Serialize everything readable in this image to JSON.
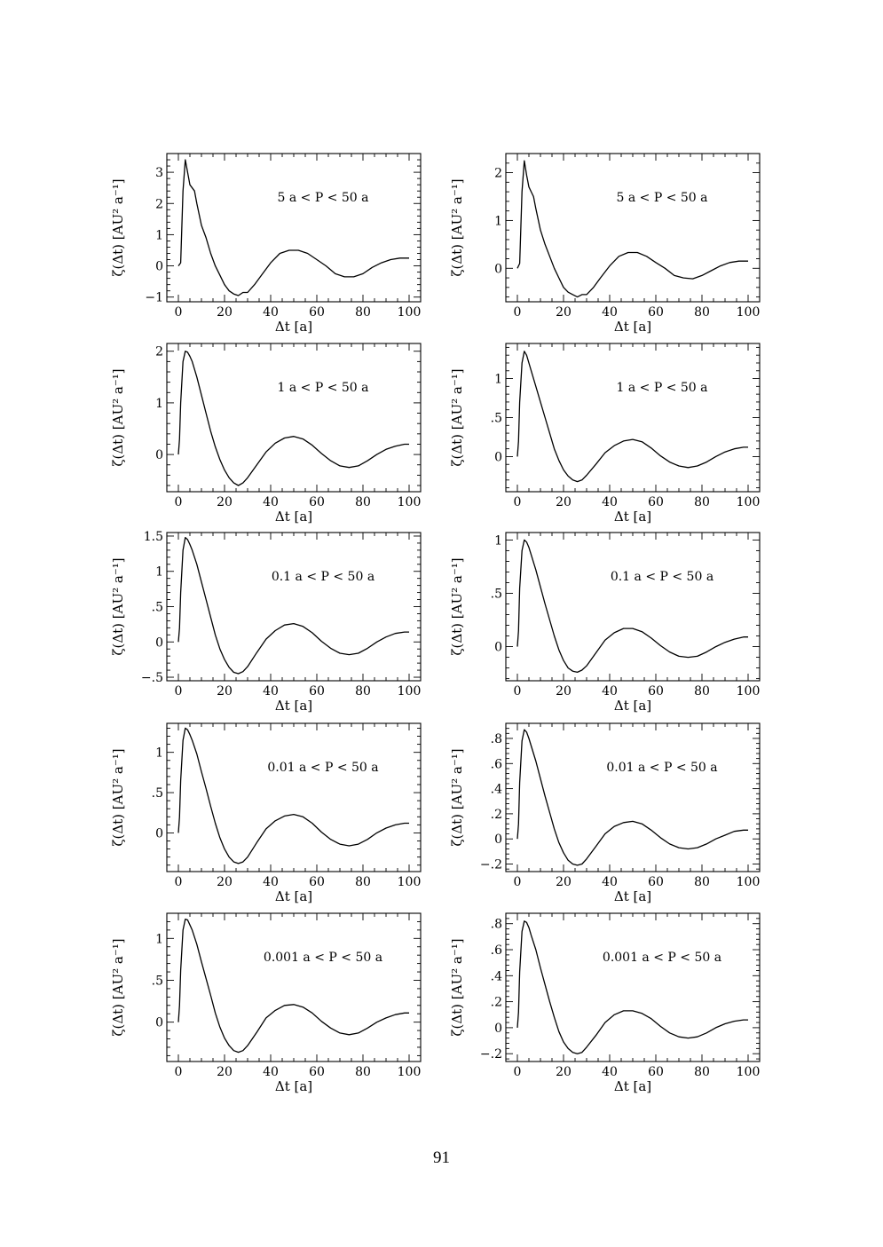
{
  "page_number": "91",
  "chart_data": [
    {
      "type": "line",
      "panel": "row1-left",
      "annotation": "5 a < P < 50 a",
      "xlabel": "Δt [a]",
      "ylabel": "ζ(Δt) [AU² a⁻¹]",
      "xlim": [
        -5,
        105
      ],
      "ylim": [
        -1.15,
        3.6
      ],
      "xticks": [
        0,
        20,
        40,
        60,
        80,
        100
      ],
      "xtick_labels": [
        "0",
        "20",
        "40",
        "60",
        "80",
        "100"
      ],
      "yticks": [
        -1,
        0,
        1,
        2,
        3
      ],
      "ytick_labels": [
        "−1",
        "0",
        "1",
        "2",
        "3"
      ],
      "x": [
        0,
        1,
        2,
        3,
        4,
        5,
        6,
        7,
        8,
        10,
        12,
        14,
        16,
        18,
        20,
        22,
        24,
        26,
        28,
        30,
        33,
        36,
        40,
        44,
        48,
        52,
        56,
        60,
        64,
        68,
        72,
        76,
        80,
        84,
        88,
        92,
        96,
        100
      ],
      "y": [
        0,
        0.1,
        2.4,
        3.4,
        3.0,
        2.6,
        2.5,
        2.4,
        2.0,
        1.3,
        0.9,
        0.4,
        0,
        -0.3,
        -0.6,
        -0.8,
        -0.9,
        -0.95,
        -0.85,
        -0.85,
        -0.6,
        -0.3,
        0.1,
        0.4,
        0.5,
        0.5,
        0.4,
        0.2,
        0,
        -0.25,
        -0.35,
        -0.35,
        -0.25,
        -0.05,
        0.1,
        0.2,
        0.25,
        0.25
      ]
    },
    {
      "type": "line",
      "panel": "row1-right",
      "annotation": "5 a < P < 50 a",
      "xlabel": "Δt [a]",
      "ylabel": "ζ(Δt) [AU² a⁻¹]",
      "xlim": [
        -5,
        105
      ],
      "ylim": [
        -0.7,
        2.4
      ],
      "xticks": [
        0,
        20,
        40,
        60,
        80,
        100
      ],
      "xtick_labels": [
        "0",
        "20",
        "40",
        "60",
        "80",
        "100"
      ],
      "yticks": [
        0,
        1,
        2
      ],
      "ytick_labels": [
        "0",
        "1",
        "2"
      ],
      "x": [
        0,
        1,
        2,
        3,
        4,
        5,
        6,
        7,
        8,
        10,
        12,
        14,
        16,
        18,
        20,
        22,
        24,
        26,
        28,
        30,
        33,
        36,
        40,
        44,
        48,
        52,
        56,
        60,
        64,
        68,
        72,
        76,
        80,
        84,
        88,
        92,
        96,
        100
      ],
      "y": [
        0,
        0.1,
        1.6,
        2.25,
        1.95,
        1.7,
        1.6,
        1.5,
        1.25,
        0.8,
        0.5,
        0.25,
        0,
        -0.2,
        -0.4,
        -0.5,
        -0.55,
        -0.6,
        -0.55,
        -0.55,
        -0.4,
        -0.2,
        0.05,
        0.25,
        0.33,
        0.33,
        0.25,
        0.12,
        0,
        -0.15,
        -0.2,
        -0.22,
        -0.15,
        -0.05,
        0.05,
        0.12,
        0.15,
        0.15
      ]
    },
    {
      "type": "line",
      "panel": "row2-left",
      "annotation": "1 a < P < 50 a",
      "xlabel": "Δt [a]",
      "ylabel": "ζ(Δt) [AU² a⁻¹]",
      "xlim": [
        -5,
        105
      ],
      "ylim": [
        -0.72,
        2.15
      ],
      "xticks": [
        0,
        20,
        40,
        60,
        80,
        100
      ],
      "xtick_labels": [
        "0",
        "20",
        "40",
        "60",
        "80",
        "100"
      ],
      "yticks": [
        0,
        1,
        2
      ],
      "ytick_labels": [
        "0",
        "1",
        "2"
      ],
      "x": [
        0,
        0.5,
        1,
        2,
        3,
        4,
        5,
        6,
        8,
        10,
        12,
        14,
        16,
        18,
        20,
        22,
        24,
        26,
        28,
        30,
        34,
        38,
        42,
        46,
        50,
        54,
        58,
        62,
        66,
        70,
        74,
        78,
        82,
        86,
        90,
        94,
        98,
        100
      ],
      "y": [
        0,
        0.3,
        1.0,
        1.8,
        2.0,
        1.98,
        1.9,
        1.8,
        1.5,
        1.15,
        0.8,
        0.45,
        0.15,
        -0.1,
        -0.3,
        -0.45,
        -0.55,
        -0.6,
        -0.55,
        -0.45,
        -0.2,
        0.05,
        0.22,
        0.32,
        0.35,
        0.3,
        0.18,
        0.02,
        -0.12,
        -0.22,
        -0.25,
        -0.22,
        -0.12,
        0,
        0.1,
        0.16,
        0.2,
        0.2
      ]
    },
    {
      "type": "line",
      "panel": "row2-right",
      "annotation": "1 a < P < 50 a",
      "xlabel": "Δt [a]",
      "ylabel": "ζ(Δt) [AU² a⁻¹]",
      "xlim": [
        -5,
        105
      ],
      "ylim": [
        -0.45,
        1.45
      ],
      "xticks": [
        0,
        20,
        40,
        60,
        80,
        100
      ],
      "xtick_labels": [
        "0",
        "20",
        "40",
        "60",
        "80",
        "100"
      ],
      "yticks": [
        0,
        0.5,
        1
      ],
      "ytick_labels": [
        "0",
        ".5",
        "1"
      ],
      "x": [
        0,
        0.5,
        1,
        2,
        3,
        4,
        5,
        6,
        8,
        10,
        12,
        14,
        16,
        18,
        20,
        22,
        24,
        26,
        28,
        30,
        34,
        38,
        42,
        46,
        50,
        54,
        58,
        62,
        66,
        70,
        74,
        78,
        82,
        86,
        90,
        94,
        98,
        100
      ],
      "y": [
        0,
        0.2,
        0.7,
        1.2,
        1.35,
        1.3,
        1.2,
        1.1,
        0.9,
        0.7,
        0.5,
        0.3,
        0.1,
        -0.05,
        -0.17,
        -0.25,
        -0.3,
        -0.32,
        -0.3,
        -0.24,
        -0.1,
        0.05,
        0.14,
        0.2,
        0.22,
        0.19,
        0.11,
        0.01,
        -0.07,
        -0.12,
        -0.14,
        -0.12,
        -0.07,
        0,
        0.06,
        0.1,
        0.12,
        0.12
      ]
    },
    {
      "type": "line",
      "panel": "row3-left",
      "annotation": "0.1 a < P < 50 a",
      "xlabel": "Δt [a]",
      "ylabel": "ζ(Δt) [AU² a⁻¹]",
      "xlim": [
        -5,
        105
      ],
      "ylim": [
        -0.55,
        1.55
      ],
      "xticks": [
        0,
        20,
        40,
        60,
        80,
        100
      ],
      "xtick_labels": [
        "0",
        "20",
        "40",
        "60",
        "80",
        "100"
      ],
      "yticks": [
        -0.5,
        0,
        0.5,
        1,
        1.5
      ],
      "ytick_labels": [
        "−.5",
        "0",
        ".5",
        "1",
        "1.5"
      ],
      "x": [
        0,
        0.5,
        1,
        2,
        3,
        4,
        5,
        6,
        8,
        10,
        12,
        14,
        16,
        18,
        20,
        22,
        24,
        26,
        28,
        30,
        34,
        38,
        42,
        46,
        50,
        54,
        58,
        62,
        66,
        70,
        74,
        78,
        82,
        86,
        90,
        94,
        98,
        100
      ],
      "y": [
        0,
        0.2,
        0.7,
        1.3,
        1.48,
        1.45,
        1.38,
        1.3,
        1.1,
        0.85,
        0.6,
        0.35,
        0.1,
        -0.1,
        -0.25,
        -0.36,
        -0.43,
        -0.45,
        -0.42,
        -0.35,
        -0.15,
        0.04,
        0.16,
        0.24,
        0.26,
        0.22,
        0.13,
        0.01,
        -0.09,
        -0.16,
        -0.18,
        -0.16,
        -0.09,
        0,
        0.07,
        0.12,
        0.14,
        0.14
      ]
    },
    {
      "type": "line",
      "panel": "row3-right",
      "annotation": "0.1 a < P < 50 a",
      "xlabel": "Δt [a]",
      "ylabel": "ζ(Δt) [AU² a⁻¹]",
      "xlim": [
        -5,
        105
      ],
      "ylim": [
        -0.32,
        1.07
      ],
      "xticks": [
        0,
        20,
        40,
        60,
        80,
        100
      ],
      "xtick_labels": [
        "0",
        "20",
        "40",
        "60",
        "80",
        "100"
      ],
      "yticks": [
        0,
        0.5,
        1
      ],
      "ytick_labels": [
        "0",
        ".5",
        "1"
      ],
      "x": [
        0,
        0.5,
        1,
        2,
        3,
        4,
        5,
        6,
        8,
        10,
        12,
        14,
        16,
        18,
        20,
        22,
        24,
        26,
        28,
        30,
        34,
        38,
        42,
        46,
        50,
        54,
        58,
        62,
        66,
        70,
        74,
        78,
        82,
        86,
        90,
        94,
        98,
        100
      ],
      "y": [
        0,
        0.15,
        0.55,
        0.9,
        1.0,
        0.98,
        0.93,
        0.86,
        0.72,
        0.56,
        0.4,
        0.25,
        0.1,
        -0.03,
        -0.13,
        -0.2,
        -0.23,
        -0.24,
        -0.22,
        -0.18,
        -0.06,
        0.06,
        0.13,
        0.17,
        0.17,
        0.14,
        0.08,
        0.01,
        -0.05,
        -0.09,
        -0.1,
        -0.09,
        -0.05,
        0,
        0.04,
        0.07,
        0.09,
        0.09
      ]
    },
    {
      "type": "line",
      "panel": "row4-left",
      "annotation": "0.01 a < P < 50 a",
      "xlabel": "Δt [a]",
      "ylabel": "ζ(Δt) [AU² a⁻¹]",
      "xlim": [
        -5,
        105
      ],
      "ylim": [
        -0.48,
        1.36
      ],
      "xticks": [
        0,
        20,
        40,
        60,
        80,
        100
      ],
      "xtick_labels": [
        "0",
        "20",
        "40",
        "60",
        "80",
        "100"
      ],
      "yticks": [
        0,
        0.5,
        1
      ],
      "ytick_labels": [
        "0",
        ".5",
        "1"
      ],
      "x": [
        0,
        0.5,
        1,
        2,
        3,
        4,
        5,
        6,
        8,
        10,
        12,
        14,
        16,
        18,
        20,
        22,
        24,
        26,
        28,
        30,
        34,
        38,
        42,
        46,
        50,
        54,
        58,
        62,
        66,
        70,
        74,
        78,
        82,
        86,
        90,
        94,
        98,
        100
      ],
      "y": [
        0,
        0.2,
        0.65,
        1.15,
        1.3,
        1.28,
        1.22,
        1.15,
        0.98,
        0.76,
        0.55,
        0.33,
        0.12,
        -0.06,
        -0.2,
        -0.3,
        -0.36,
        -0.38,
        -0.36,
        -0.3,
        -0.12,
        0.05,
        0.15,
        0.21,
        0.23,
        0.2,
        0.12,
        0.01,
        -0.08,
        -0.14,
        -0.16,
        -0.14,
        -0.08,
        0,
        0.06,
        0.1,
        0.12,
        0.12
      ]
    },
    {
      "type": "line",
      "panel": "row4-right",
      "annotation": "0.01 a < P < 50 a",
      "xlabel": "Δt [a]",
      "ylabel": "ζ(Δt) [AU² a⁻¹]",
      "xlim": [
        -5,
        105
      ],
      "ylim": [
        -0.26,
        0.92
      ],
      "xticks": [
        0,
        20,
        40,
        60,
        80,
        100
      ],
      "xtick_labels": [
        "0",
        "20",
        "40",
        "60",
        "80",
        "100"
      ],
      "yticks": [
        -0.2,
        0,
        0.2,
        0.4,
        0.6,
        0.8
      ],
      "ytick_labels": [
        "−.2",
        "0",
        ".2",
        ".4",
        ".6",
        ".8"
      ],
      "x": [
        0,
        0.5,
        1,
        2,
        3,
        4,
        5,
        6,
        8,
        10,
        12,
        14,
        16,
        18,
        20,
        22,
        24,
        26,
        28,
        30,
        34,
        38,
        42,
        46,
        50,
        54,
        58,
        62,
        66,
        70,
        74,
        78,
        82,
        86,
        90,
        94,
        98,
        100
      ],
      "y": [
        0,
        0.12,
        0.45,
        0.78,
        0.87,
        0.85,
        0.8,
        0.74,
        0.62,
        0.48,
        0.34,
        0.21,
        0.08,
        -0.03,
        -0.11,
        -0.17,
        -0.2,
        -0.21,
        -0.2,
        -0.16,
        -0.06,
        0.04,
        0.1,
        0.13,
        0.14,
        0.12,
        0.07,
        0.01,
        -0.04,
        -0.07,
        -0.08,
        -0.07,
        -0.04,
        0,
        0.03,
        0.06,
        0.07,
        0.07
      ]
    },
    {
      "type": "line",
      "panel": "row5-left",
      "annotation": "0.001 a < P < 50 a",
      "xlabel": "Δt [a]",
      "ylabel": "ζ(Δt) [AU² a⁻¹]",
      "xlim": [
        -5,
        105
      ],
      "ylim": [
        -0.47,
        1.3
      ],
      "xticks": [
        0,
        20,
        40,
        60,
        80,
        100
      ],
      "xtick_labels": [
        "0",
        "20",
        "40",
        "60",
        "80",
        "100"
      ],
      "yticks": [
        0,
        0.5,
        1
      ],
      "ytick_labels": [
        "0",
        ".5",
        "1"
      ],
      "x": [
        0,
        0.5,
        1,
        2,
        3,
        4,
        5,
        6,
        8,
        10,
        12,
        14,
        16,
        18,
        20,
        22,
        24,
        26,
        28,
        30,
        34,
        38,
        42,
        46,
        50,
        54,
        58,
        62,
        66,
        70,
        74,
        78,
        82,
        86,
        90,
        94,
        98,
        100
      ],
      "y": [
        0,
        0.2,
        0.62,
        1.1,
        1.23,
        1.22,
        1.16,
        1.1,
        0.93,
        0.72,
        0.52,
        0.32,
        0.11,
        -0.06,
        -0.19,
        -0.28,
        -0.34,
        -0.36,
        -0.34,
        -0.28,
        -0.12,
        0.05,
        0.14,
        0.2,
        0.21,
        0.18,
        0.11,
        0.01,
        -0.07,
        -0.13,
        -0.15,
        -0.13,
        -0.07,
        0,
        0.05,
        0.09,
        0.11,
        0.11
      ]
    },
    {
      "type": "line",
      "panel": "row5-right",
      "annotation": "0.001 a < P < 50 a",
      "xlabel": "Δt [a]",
      "ylabel": "ζ(Δt) [AU² a⁻¹]",
      "xlim": [
        -5,
        105
      ],
      "ylim": [
        -0.26,
        0.88
      ],
      "xticks": [
        0,
        20,
        40,
        60,
        80,
        100
      ],
      "xtick_labels": [
        "0",
        "20",
        "40",
        "60",
        "80",
        "100"
      ],
      "yticks": [
        -0.2,
        0,
        0.2,
        0.4,
        0.6,
        0.8
      ],
      "ytick_labels": [
        "−.2",
        "0",
        ".2",
        ".4",
        ".6",
        ".8"
      ],
      "x": [
        0,
        0.5,
        1,
        2,
        3,
        4,
        5,
        6,
        8,
        10,
        12,
        14,
        16,
        18,
        20,
        22,
        24,
        26,
        28,
        30,
        34,
        38,
        42,
        46,
        50,
        54,
        58,
        62,
        66,
        70,
        74,
        78,
        82,
        86,
        90,
        94,
        98,
        100
      ],
      "y": [
        0,
        0.12,
        0.43,
        0.74,
        0.82,
        0.81,
        0.77,
        0.71,
        0.6,
        0.46,
        0.33,
        0.2,
        0.08,
        -0.03,
        -0.11,
        -0.16,
        -0.19,
        -0.2,
        -0.19,
        -0.15,
        -0.06,
        0.04,
        0.1,
        0.13,
        0.13,
        0.11,
        0.07,
        0.01,
        -0.04,
        -0.07,
        -0.08,
        -0.07,
        -0.04,
        0,
        0.03,
        0.05,
        0.06,
        0.06
      ]
    }
  ]
}
